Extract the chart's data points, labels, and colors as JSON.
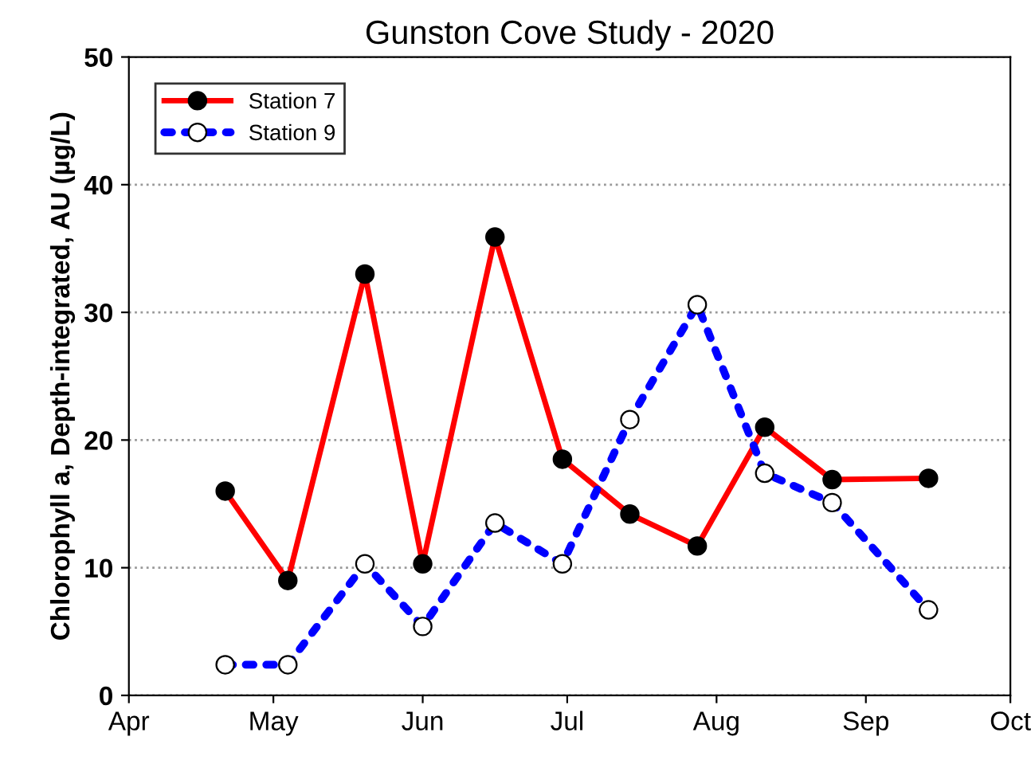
{
  "chart_data": {
    "type": "line",
    "title": "Gunston Cove Study - 2020",
    "ylabel": "Chlorophyll a, Depth-integrated, AU (µg/L)",
    "x": [
      "2020-04-21",
      "2020-05-04",
      "2020-05-20",
      "2020-06-01",
      "2020-06-16",
      "2020-06-30",
      "2020-07-14",
      "2020-07-28",
      "2020-08-11",
      "2020-08-25",
      "2020-09-14"
    ],
    "series": [
      {
        "name": "Station 7",
        "color": "#ff0000",
        "marker": "circle",
        "line_style": "solid",
        "values": [
          16.0,
          9.0,
          33.0,
          10.3,
          35.9,
          18.5,
          14.2,
          11.7,
          21.0,
          16.9,
          17.0
        ]
      },
      {
        "name": "Station 9",
        "color": "#0000ff",
        "marker": "circle",
        "line_style": "dotted",
        "values": [
          2.4,
          2.4,
          10.3,
          5.4,
          13.5,
          10.3,
          21.6,
          30.6,
          17.4,
          15.1,
          6.7
        ]
      }
    ],
    "xlim": [
      "2020-04-01",
      "2020-10-01"
    ],
    "xticks": [
      {
        "value": "2020-04-01",
        "label": "Apr"
      },
      {
        "value": "2020-05-01",
        "label": "May"
      },
      {
        "value": "2020-06-01",
        "label": "Jun"
      },
      {
        "value": "2020-07-01",
        "label": "Jul"
      },
      {
        "value": "2020-08-01",
        "label": "Aug"
      },
      {
        "value": "2020-09-01",
        "label": "Sep"
      },
      {
        "value": "2020-10-01",
        "label": "Oct"
      }
    ],
    "ylim": [
      0,
      50
    ],
    "yticks": [
      0,
      10,
      20,
      30,
      40,
      50
    ],
    "grid": "y",
    "legend": "top left"
  }
}
